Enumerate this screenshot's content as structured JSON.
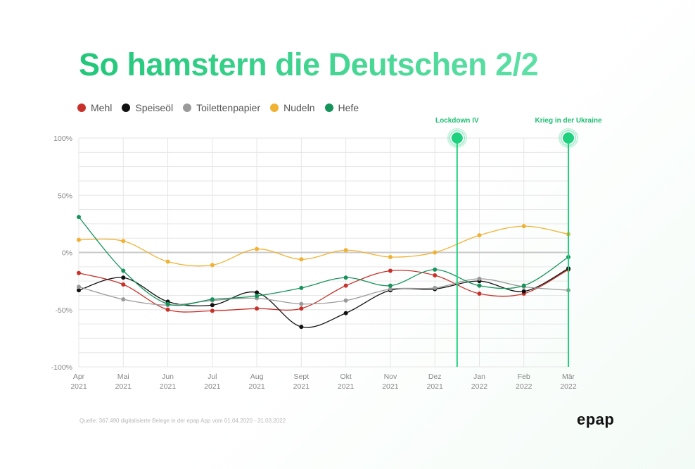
{
  "title": "So hamstern die Deutschen 2/2",
  "source": "Quelle: 367.490 digitalisierte Belege in der epap App vom 01.04.2020 - 31.03.2022",
  "logo": "epap",
  "colors": {
    "Mehl": "#c8312a",
    "Speiseöl": "#111111",
    "Toilettenpapier": "#9a9a9a",
    "Nudeln": "#f0b232",
    "Hefe": "#16935a",
    "accent": "#1fd17e",
    "grid": "#e6e6e6",
    "zero": "#c9c9c9"
  },
  "chart_data": {
    "type": "line",
    "x_labels": [
      [
        "Apr",
        "2021"
      ],
      [
        "Mai",
        "2021"
      ],
      [
        "Jun",
        "2021"
      ],
      [
        "Jul",
        "2021"
      ],
      [
        "Aug",
        "2021"
      ],
      [
        "Sept",
        "2021"
      ],
      [
        "Okt",
        "2021"
      ],
      [
        "Nov",
        "2021"
      ],
      [
        "Dez",
        "2021"
      ],
      [
        "Jan",
        "2022"
      ],
      [
        "Feb",
        "2022"
      ],
      [
        "Mär",
        "2022"
      ]
    ],
    "y_ticks": [
      "100%",
      "50%",
      "0%",
      "-50%",
      "-100%"
    ],
    "ylim": [
      -100,
      100
    ],
    "series": [
      {
        "name": "Mehl",
        "values": [
          -18,
          -28,
          -50,
          -51,
          -49,
          -49,
          -29,
          -16,
          -20,
          -36,
          -36,
          -15
        ]
      },
      {
        "name": "Speiseöl",
        "values": [
          -33,
          -22,
          -43,
          -46,
          -35,
          -65,
          -53,
          -33,
          -32,
          -25,
          -34,
          -14
        ]
      },
      {
        "name": "Toilettenpapier",
        "values": [
          -30,
          -41,
          -46,
          -42,
          -40,
          -45,
          -42,
          -32,
          -31,
          -23,
          -30,
          -33
        ]
      },
      {
        "name": "Nudeln",
        "values": [
          11,
          10,
          -8,
          -11,
          3,
          -6,
          2,
          -4,
          0,
          15,
          23,
          16
        ]
      },
      {
        "name": "Hefe",
        "values": [
          31,
          -16,
          -45,
          -41,
          -38,
          -31,
          -22,
          -29,
          -15,
          -29,
          -29,
          -4
        ]
      }
    ],
    "annotations": [
      {
        "label": "Lockdown IV",
        "x_index": 8.5
      },
      {
        "label": "Krieg in der Ukraine",
        "x_index": 11
      }
    ]
  }
}
